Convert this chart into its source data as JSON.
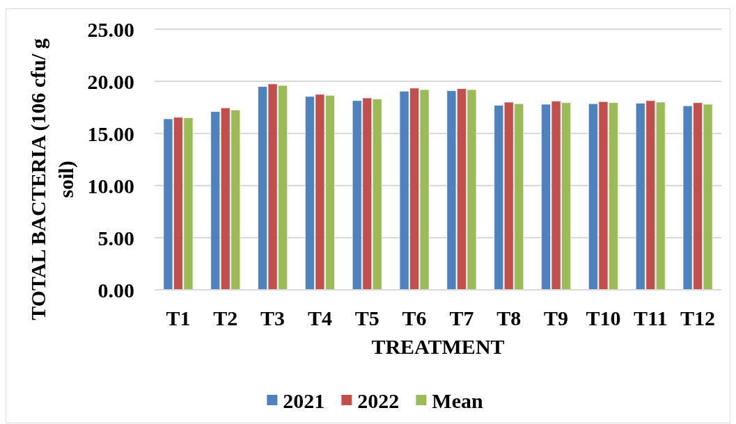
{
  "chart_data": {
    "type": "bar",
    "xlabel": "TREATMENT",
    "ylabel": "TOTAL BACTERIA (106 cfu/ g soil)",
    "categories": [
      "T1",
      "T2",
      "T3",
      "T4",
      "T5",
      "T6",
      "T7",
      "T8",
      "T9",
      "T10",
      "T11",
      "T12"
    ],
    "series": [
      {
        "name": "2021",
        "color": "#4f81bd",
        "values": [
          16.4,
          17.1,
          19.5,
          18.55,
          18.15,
          19.05,
          19.1,
          17.7,
          17.8,
          17.85,
          17.9,
          17.65
        ]
      },
      {
        "name": "2022",
        "color": "#c0504d",
        "values": [
          16.55,
          17.45,
          19.75,
          18.75,
          18.4,
          19.35,
          19.3,
          18.0,
          18.1,
          18.05,
          18.15,
          17.95
        ]
      },
      {
        "name": "Mean",
        "color": "#9bbb59",
        "values": [
          16.5,
          17.25,
          19.6,
          18.65,
          18.3,
          19.2,
          19.2,
          17.85,
          17.95,
          17.95,
          18.0,
          17.8
        ]
      }
    ],
    "ylim": [
      0,
      25
    ],
    "yticks": [
      {
        "value": 0,
        "label": "0.00"
      },
      {
        "value": 5,
        "label": "5.00"
      },
      {
        "value": 10,
        "label": "10.00"
      },
      {
        "value": 15,
        "label": "15.00"
      },
      {
        "value": 20,
        "label": "20.00"
      },
      {
        "value": 25,
        "label": "25.00"
      }
    ],
    "grid": "y",
    "legend": "bottom"
  }
}
